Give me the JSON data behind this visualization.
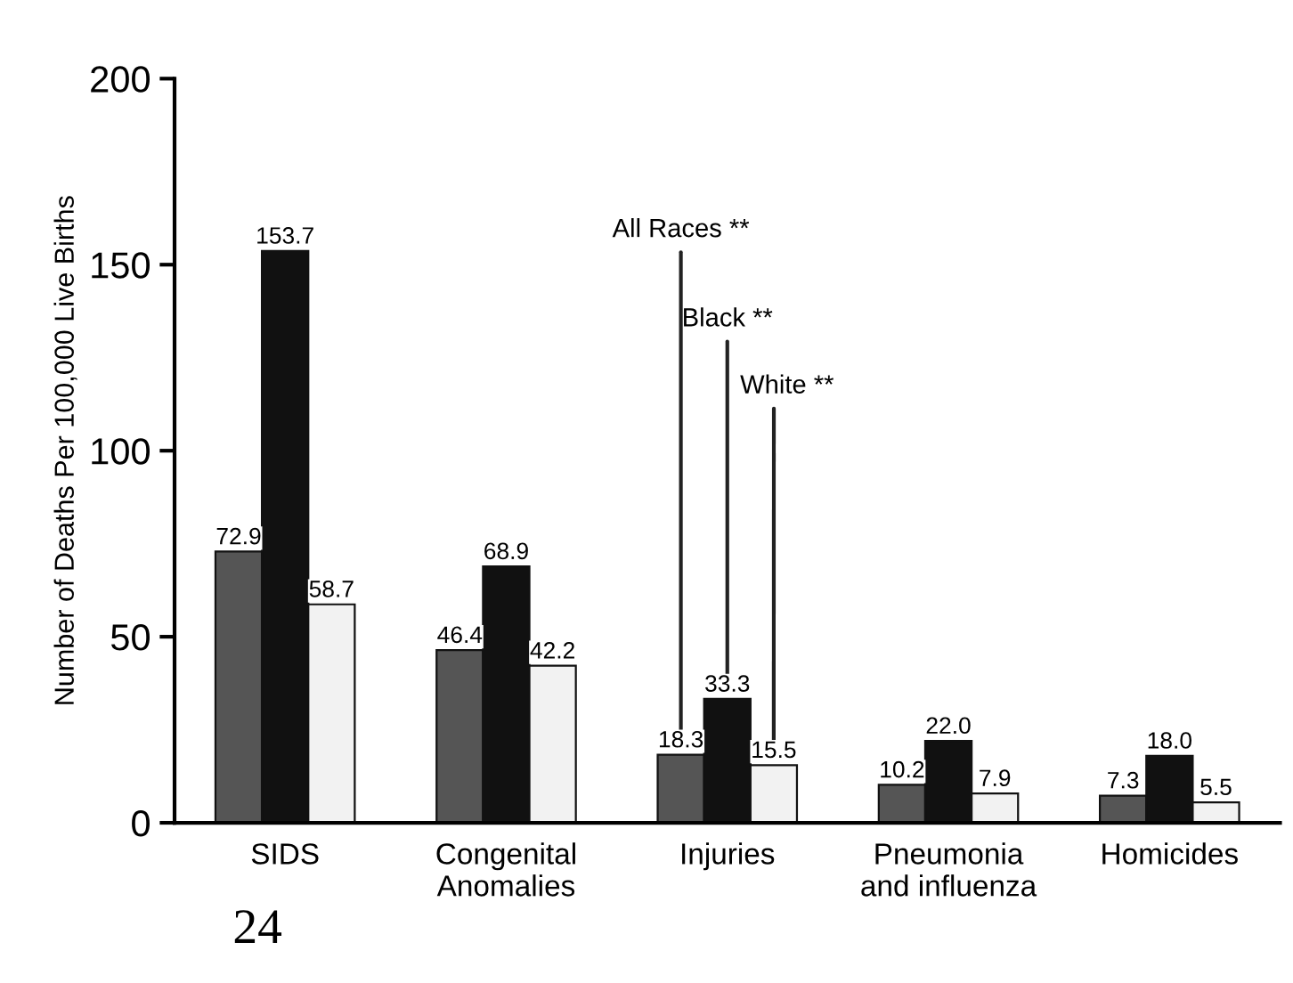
{
  "chart_data": {
    "type": "bar",
    "ylabel": "Number of Deaths Per 100,000 Live Births",
    "categories": [
      "SIDS",
      "Congenital\nAnomalies",
      "Injuries",
      "Pneumonia\nand influenza",
      "Homicides"
    ],
    "series": [
      {
        "name": "All Races **",
        "color": "#555555",
        "values": [
          72.9,
          46.4,
          18.3,
          10.2,
          7.3
        ],
        "value_labels": [
          "72.9",
          "46.4",
          "18.3",
          "10.2",
          "7.3"
        ]
      },
      {
        "name": "Black **",
        "color": "#111111",
        "values": [
          153.7,
          68.9,
          33.3,
          22.0,
          18.0
        ],
        "value_labels": [
          "153.7",
          "68.9",
          "33.3",
          "22.0",
          "18.0"
        ]
      },
      {
        "name": "White **",
        "color": "#f2f2f2",
        "values": [
          58.7,
          42.2,
          15.5,
          7.9,
          5.5
        ],
        "value_labels": [
          "58.7",
          "42.2",
          "15.5",
          "7.9",
          "5.5"
        ]
      }
    ],
    "ylim": [
      0,
      200
    ],
    "yticks": [
      0,
      50,
      100,
      150,
      200
    ],
    "grid": false,
    "legend": false,
    "annotations": [
      "24"
    ]
  }
}
